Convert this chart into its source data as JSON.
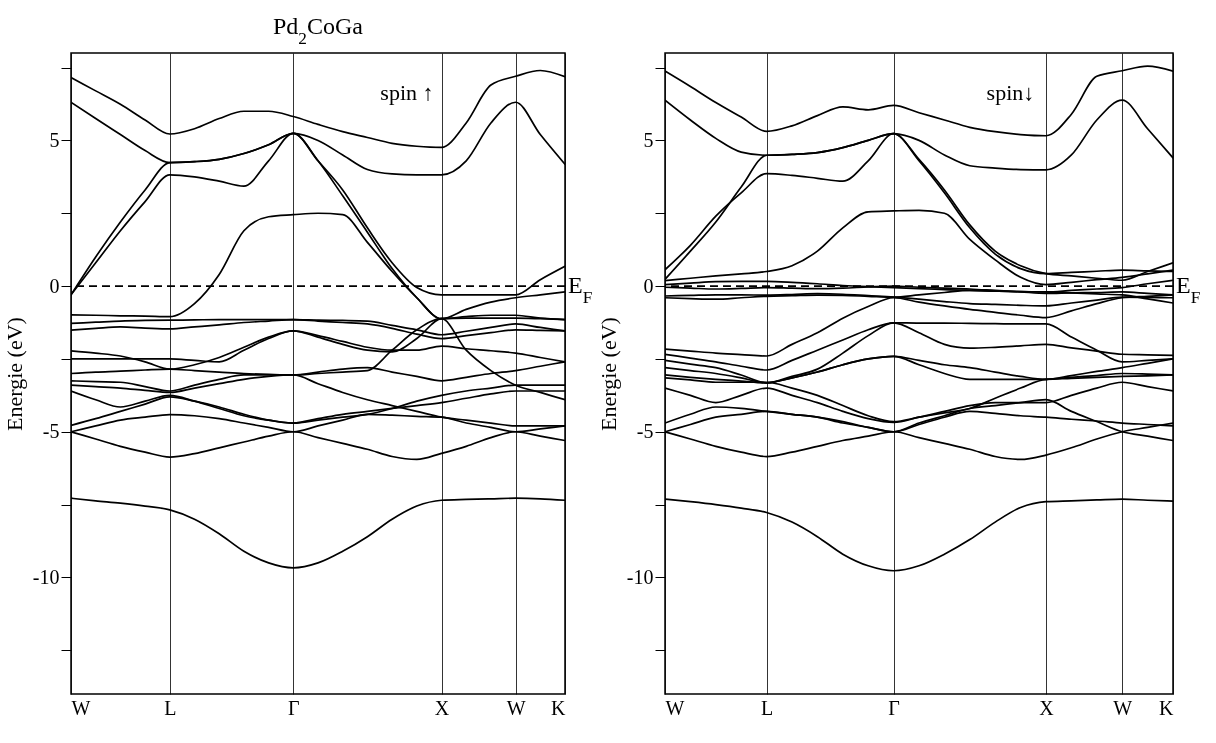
{
  "chart_data": [
    {
      "type": "line",
      "title": "Pd$_{2}$CoGa",
      "ylabel": "Energie (eV)",
      "annotations": [
        "spin ↑"
      ],
      "categories": [
        "W",
        null,
        null,
        null,
        "L",
        null,
        null,
        null,
        null,
        "Γ",
        null,
        null,
        null,
        null,
        null,
        "X",
        null,
        null,
        "W",
        null,
        "K"
      ],
      "ylim": [
        -14,
        8
      ],
      "yticks": [
        {
          "value": -12.5,
          "label": null
        },
        -10,
        {
          "value": -7.5,
          "label": null
        },
        -5,
        {
          "value": -2.5,
          "label": null
        },
        0,
        {
          "value": 2.5,
          "label": null
        },
        5,
        {
          "value": 7.5,
          "label": null
        }
      ],
      "grid": "x",
      "legend": false,
      "ref_lines": [
        {
          "axis": "y",
          "value": 0,
          "label": "E$_{F}$",
          "line_style": "dashed"
        }
      ],
      "series": [
        {
          "color": "#000000",
          "values": [
            7.16,
            6.7,
            6.24,
            5.7,
            5.22,
            5.4,
            5.75,
            6.0,
            6.0,
            5.82,
            5.55,
            5.3,
            5.1,
            4.9,
            4.8,
            4.76,
            5.6,
            6.9,
            7.2,
            7.4,
            7.19
          ]
        },
        {
          "color": "#000000",
          "values": [
            6.31,
            5.75,
            5.2,
            4.65,
            4.24,
            4.27,
            4.35,
            4.55,
            4.85,
            5.24,
            5.0,
            4.5,
            4.0,
            3.85,
            3.82,
            3.82,
            4.3,
            5.6,
            6.31,
            5.2,
            4.18
          ]
        },
        {
          "color": "#000000",
          "values": [
            -0.3,
            0.8,
            1.9,
            2.9,
            3.82,
            3.75,
            3.6,
            3.43,
            4.3,
            5.24,
            4.3,
            3.1,
            1.85,
            0.6,
            -0.4,
            -1.12,
            -0.8,
            -0.55,
            -0.4,
            -0.3,
            -0.2
          ]
        },
        {
          "color": "#000000",
          "values": [
            -0.3,
            1.0,
            2.2,
            3.3,
            4.24,
            4.27,
            4.35,
            4.55,
            4.85,
            5.24,
            4.3,
            3.3,
            2.0,
            0.8,
            -0.05,
            -0.3,
            -0.3,
            -0.3,
            -0.3,
            0.22,
            0.68
          ]
        },
        {
          "color": "#000000",
          "values": [
            -0.99,
            -1.0,
            -1.02,
            -1.03,
            -1.05,
            -0.6,
            0.4,
            1.9,
            2.38,
            2.45,
            2.5,
            2.45,
            1.5,
            0.5,
            -0.4,
            -1.12,
            -1.05,
            -1.0,
            -1.0,
            -1.1,
            -1.15
          ]
        },
        {
          "color": "#000000",
          "values": [
            -1.28,
            -1.24,
            -1.2,
            -1.18,
            -1.17,
            -1.16,
            -1.15,
            -1.15,
            -1.15,
            -1.15,
            -1.17,
            -1.18,
            -1.2,
            -1.35,
            -1.5,
            -1.67,
            -1.55,
            -1.42,
            -1.3,
            -1.42,
            -1.54
          ]
        },
        {
          "color": "#000000",
          "values": [
            -1.51,
            -1.45,
            -1.4,
            -1.44,
            -1.47,
            -1.4,
            -1.33,
            -1.25,
            -1.2,
            -1.15,
            -1.2,
            -1.25,
            -1.3,
            -1.45,
            -1.65,
            -1.8,
            -1.7,
            -1.6,
            -1.5,
            -1.52,
            -1.54
          ]
        },
        {
          "color": "#000000",
          "values": [
            -2.22,
            -2.3,
            -2.4,
            -2.6,
            -2.85,
            -2.7,
            -2.45,
            -2.1,
            -1.75,
            -1.54,
            -1.7,
            -1.9,
            -2.1,
            -2.2,
            -2.2,
            -2.06,
            -2.15,
            -2.22,
            -2.3,
            -2.45,
            -2.6
          ]
        },
        {
          "color": "#000000",
          "values": [
            -2.5,
            -2.5,
            -2.5,
            -2.5,
            -2.5,
            -2.55,
            -2.6,
            -2.2,
            -1.8,
            -1.54,
            -1.75,
            -2.0,
            -2.2,
            -2.26,
            -1.8,
            -1.12,
            -1.1,
            -1.1,
            -1.1,
            -1.12,
            -1.15
          ]
        },
        {
          "color": "#000000",
          "values": [
            -3.0,
            -2.95,
            -2.92,
            -2.88,
            -2.85,
            -2.9,
            -2.95,
            -3.0,
            -3.03,
            -3.05,
            -3.0,
            -2.95,
            -2.9,
            -2.2,
            -1.5,
            -1.12,
            -2.2,
            -2.9,
            -3.4,
            -3.65,
            -3.9
          ]
        },
        {
          "color": "#000000",
          "values": [
            -3.25,
            -3.28,
            -3.3,
            -3.45,
            -3.6,
            -3.4,
            -3.2,
            -3.05,
            -3.05,
            -3.05,
            -2.95,
            -2.85,
            -2.8,
            -2.95,
            -3.1,
            -3.25,
            -3.13,
            -3.0,
            -2.9,
            -2.75,
            -2.6
          ]
        },
        {
          "color": "#000000",
          "values": [
            -3.4,
            -3.45,
            -3.5,
            -3.58,
            -3.65,
            -3.5,
            -3.35,
            -3.2,
            -3.1,
            -3.05,
            -3.35,
            -3.65,
            -3.9,
            -4.1,
            -4.3,
            -4.5,
            -4.6,
            -4.7,
            -4.8,
            -4.8,
            -4.8
          ]
        },
        {
          "color": "#000000",
          "values": [
            -3.6,
            -3.9,
            -4.15,
            -3.95,
            -3.75,
            -3.95,
            -4.2,
            -4.45,
            -4.6,
            -4.7,
            -4.6,
            -4.5,
            -4.4,
            -4.2,
            -3.95,
            -3.75,
            -3.6,
            -3.5,
            -3.4,
            -3.4,
            -3.4
          ]
        },
        {
          "color": "#000000",
          "values": [
            -4.78,
            -4.55,
            -4.3,
            -4.05,
            -3.8,
            -3.95,
            -4.15,
            -4.4,
            -4.6,
            -4.7,
            -4.55,
            -4.4,
            -4.3,
            -4.2,
            -4.1,
            -4.0,
            -3.85,
            -3.7,
            -3.6,
            -3.6,
            -3.6
          ]
        },
        {
          "color": "#000000",
          "values": [
            -5.0,
            -4.8,
            -4.6,
            -4.5,
            -4.41,
            -4.45,
            -4.55,
            -4.7,
            -4.85,
            -5.0,
            -4.8,
            -4.6,
            -4.4,
            -4.43,
            -4.47,
            -4.5,
            -4.7,
            -4.85,
            -5.0,
            -4.9,
            -4.8
          ]
        },
        {
          "color": "#000000",
          "values": [
            -5.0,
            -5.25,
            -5.5,
            -5.7,
            -5.87,
            -5.75,
            -5.55,
            -5.35,
            -5.15,
            -5.0,
            -5.2,
            -5.4,
            -5.6,
            -5.85,
            -5.95,
            -5.74,
            -5.5,
            -5.2,
            -5.0,
            -5.15,
            -5.3
          ]
        },
        {
          "color": "#000000",
          "values": [
            -7.28,
            -7.37,
            -7.45,
            -7.55,
            -7.68,
            -8.0,
            -8.5,
            -9.1,
            -9.5,
            -9.67,
            -9.5,
            -9.1,
            -8.6,
            -8.0,
            -7.55,
            -7.35,
            -7.32,
            -7.3,
            -7.28,
            -7.3,
            -7.35
          ]
        }
      ]
    },
    {
      "type": "line",
      "ylabel": "Energie (eV)",
      "annotations": [
        "spin↓"
      ],
      "categories": [
        "W",
        null,
        null,
        null,
        "L",
        null,
        null,
        null,
        null,
        "Γ",
        null,
        null,
        null,
        null,
        null,
        "X",
        null,
        null,
        "W",
        null,
        "K"
      ],
      "ylim": [
        -14,
        8
      ],
      "yticks": [
        {
          "value": -12.5,
          "label": null
        },
        -10,
        {
          "value": -7.5,
          "label": null
        },
        -5,
        {
          "value": -2.5,
          "label": null
        },
        0,
        {
          "value": 2.5,
          "label": null
        },
        5,
        {
          "value": 7.5,
          "label": null
        }
      ],
      "grid": "x",
      "legend": false,
      "ref_lines": [
        {
          "axis": "y",
          "value": 0,
          "label": "E$_{F}$",
          "line_style": "dashed"
        }
      ],
      "series": [
        {
          "color": "#000000",
          "values": [
            7.38,
            6.85,
            6.3,
            5.8,
            5.31,
            5.5,
            5.85,
            6.15,
            6.05,
            6.2,
            5.95,
            5.7,
            5.45,
            5.3,
            5.2,
            5.16,
            5.9,
            7.2,
            7.39,
            7.55,
            7.38
          ]
        },
        {
          "color": "#000000",
          "values": [
            6.38,
            5.7,
            5.07,
            4.6,
            4.49,
            4.52,
            4.58,
            4.75,
            5.0,
            5.23,
            5.0,
            4.5,
            4.13,
            4.05,
            4.0,
            3.99,
            4.5,
            5.7,
            6.38,
            5.4,
            4.4
          ]
        },
        {
          "color": "#000000",
          "values": [
            0.56,
            1.4,
            2.4,
            3.2,
            3.86,
            3.8,
            3.7,
            3.6,
            4.3,
            5.23,
            4.3,
            3.2,
            2.0,
            1.1,
            0.6,
            0.43,
            0.47,
            0.51,
            0.55,
            0.52,
            0.5
          ]
        },
        {
          "color": "#000000",
          "values": [
            0.23,
            1.2,
            2.2,
            3.4,
            4.49,
            4.52,
            4.58,
            4.75,
            5.0,
            5.23,
            4.35,
            3.3,
            2.1,
            1.2,
            0.7,
            0.43,
            0.35,
            0.27,
            0.2,
            0.5,
            0.8
          ]
        },
        {
          "color": "#000000",
          "values": [
            0.19,
            0.27,
            0.35,
            0.42,
            0.5,
            0.7,
            1.2,
            2.0,
            2.55,
            2.58,
            2.6,
            2.5,
            1.6,
            0.9,
            0.3,
            0.05,
            0.13,
            0.22,
            0.3,
            0.42,
            0.55
          ]
        },
        {
          "color": "#000000",
          "values": [
            0.05,
            0.1,
            0.15,
            0.16,
            0.16,
            0.13,
            0.08,
            0.02,
            -0.02,
            -0.05,
            -0.09,
            -0.12,
            -0.15,
            -0.17,
            -0.19,
            -0.2,
            -0.15,
            -0.1,
            -0.05,
            0.08,
            0.2
          ]
        },
        {
          "color": "#000000",
          "values": [
            -0.04,
            -0.07,
            -0.1,
            -0.08,
            -0.05,
            -0.07,
            -0.09,
            -0.07,
            -0.03,
            0,
            -0.04,
            -0.07,
            -0.1,
            -0.15,
            -0.2,
            -0.25,
            -0.23,
            -0.22,
            -0.2,
            -0.25,
            -0.3
          ]
        },
        {
          "color": "#000000",
          "values": [
            -0.34,
            -0.32,
            -0.3,
            -0.3,
            -0.31,
            -0.29,
            -0.26,
            -0.28,
            -0.33,
            -0.38,
            -0.45,
            -0.53,
            -0.6,
            -0.63,
            -0.66,
            -0.68,
            -0.58,
            -0.48,
            -0.38,
            -0.39,
            -0.4
          ]
        },
        {
          "color": "#000000",
          "values": [
            -0.4,
            -0.43,
            -0.45,
            -0.4,
            -0.35,
            -0.33,
            -0.31,
            -0.32,
            -0.35,
            -0.38,
            -0.3,
            -0.22,
            -0.15,
            -0.17,
            -0.19,
            -0.2,
            -0.23,
            -0.27,
            -0.3,
            -0.44,
            -0.58
          ]
        },
        {
          "color": "#000000",
          "values": [
            -2.16,
            -2.23,
            -2.3,
            -2.35,
            -2.4,
            -2.0,
            -1.6,
            -1.1,
            -0.7,
            -0.4,
            -0.55,
            -0.68,
            -0.8,
            -0.9,
            -1.0,
            -1.08,
            -0.85,
            -0.6,
            -0.4,
            -0.35,
            -0.3
          ]
        },
        {
          "color": "#000000",
          "values": [
            -2.34,
            -2.47,
            -2.6,
            -2.75,
            -2.88,
            -2.55,
            -2.2,
            -1.85,
            -1.5,
            -1.26,
            -1.6,
            -2.0,
            -2.13,
            -2.1,
            -2.05,
            -2.0,
            -2.12,
            -2.23,
            -2.34,
            -2.36,
            -2.38
          ]
        },
        {
          "color": "#000000",
          "values": [
            -2.8,
            -2.9,
            -3.0,
            -3.15,
            -3.32,
            -3.1,
            -2.85,
            -2.3,
            -1.7,
            -1.26,
            -1.27,
            -1.27,
            -1.28,
            -1.29,
            -1.3,
            -1.3,
            -1.75,
            -2.2,
            -2.6,
            -2.55,
            -2.5
          ]
        },
        {
          "color": "#000000",
          "values": [
            -2.55,
            -2.68,
            -2.8,
            -3.05,
            -3.32,
            -3.15,
            -2.95,
            -2.7,
            -2.5,
            -2.41,
            -2.55,
            -2.7,
            -2.8,
            -2.95,
            -3.1,
            -3.2,
            -3.13,
            -3.07,
            -3.0,
            -3.02,
            -3.05
          ]
        },
        {
          "color": "#000000",
          "values": [
            -3.05,
            -3.13,
            -3.2,
            -3.26,
            -3.32,
            -3.15,
            -2.95,
            -2.7,
            -2.5,
            -2.41,
            -2.7,
            -3.0,
            -3.2,
            -3.2,
            -3.2,
            -3.2,
            -3.07,
            -2.93,
            -2.8,
            -2.65,
            -2.5
          ]
        },
        {
          "color": "#000000",
          "values": [
            -3.15,
            -3.22,
            -3.3,
            -3.3,
            -3.3,
            -3.5,
            -3.75,
            -4.1,
            -4.45,
            -4.65,
            -4.5,
            -4.35,
            -4.2,
            -3.85,
            -3.5,
            -3.2,
            -3.17,
            -3.13,
            -3.1,
            -3.08,
            -3.05
          ]
        },
        {
          "color": "#000000",
          "values": [
            -3.5,
            -3.75,
            -4.0,
            -3.75,
            -3.5,
            -3.75,
            -4.0,
            -4.3,
            -4.55,
            -4.68,
            -4.5,
            -4.3,
            -4.1,
            -4.0,
            -4.0,
            -4.0,
            -3.75,
            -3.5,
            -3.3,
            -3.45,
            -3.6
          ]
        },
        {
          "color": "#000000",
          "values": [
            -4.7,
            -4.4,
            -4.15,
            -4.2,
            -4.3,
            -4.4,
            -4.5,
            -4.65,
            -4.85,
            -5.0,
            -4.75,
            -4.5,
            -4.3,
            -4.37,
            -4.45,
            -4.5,
            -4.57,
            -4.63,
            -4.7,
            -4.75,
            -4.8
          ]
        },
        {
          "color": "#000000",
          "values": [
            -5.0,
            -4.75,
            -4.5,
            -4.4,
            -4.3,
            -4.4,
            -4.5,
            -4.7,
            -4.85,
            -5.0,
            -4.7,
            -4.45,
            -4.2,
            -4.1,
            -4.0,
            -3.9,
            -4.3,
            -4.65,
            -5.0,
            -5.15,
            -5.3
          ]
        },
        {
          "color": "#000000",
          "values": [
            -5.0,
            -5.25,
            -5.5,
            -5.7,
            -5.85,
            -5.7,
            -5.5,
            -5.3,
            -5.15,
            -5.0,
            -5.2,
            -5.4,
            -5.6,
            -5.85,
            -5.95,
            -5.8,
            -5.55,
            -5.25,
            -5.0,
            -4.85,
            -4.7
          ]
        },
        {
          "color": "#000000",
          "values": [
            -7.31,
            -7.4,
            -7.5,
            -7.62,
            -7.77,
            -8.1,
            -8.6,
            -9.2,
            -9.6,
            -9.77,
            -9.6,
            -9.2,
            -8.7,
            -8.1,
            -7.6,
            -7.4,
            -7.37,
            -7.34,
            -7.31,
            -7.35,
            -7.38
          ]
        }
      ]
    }
  ]
}
